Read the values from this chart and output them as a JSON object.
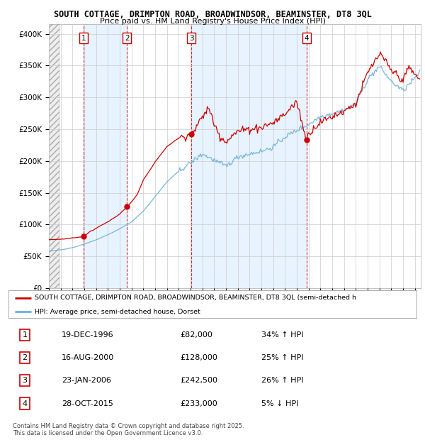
{
  "title": "SOUTH COTTAGE, DRIMPTON ROAD, BROADWINDSOR, BEAMINSTER, DT8 3QL",
  "subtitle": "Price paid vs. HM Land Registry's House Price Index (HPI)",
  "ylabel_ticks": [
    "£0",
    "£50K",
    "£100K",
    "£150K",
    "£200K",
    "£250K",
    "£300K",
    "£350K",
    "£400K"
  ],
  "ytick_values": [
    0,
    50000,
    100000,
    150000,
    200000,
    250000,
    300000,
    350000,
    400000
  ],
  "ylim": [
    0,
    415000
  ],
  "xlim_start": 1994.0,
  "xlim_end": 2025.5,
  "hpi_color": "#6baed6",
  "price_color": "#cc0000",
  "sale_dates": [
    1996.96,
    2000.62,
    2006.06,
    2015.83
  ],
  "sale_prices": [
    82000,
    128000,
    242500,
    233000
  ],
  "sale_labels": [
    "1",
    "2",
    "3",
    "4"
  ],
  "legend_property": "SOUTH COTTAGE, DRIMPTON ROAD, BROADWINDSOR, BEAMINSTER, DT8 3QL (semi-detached h",
  "legend_hpi": "HPI: Average price, semi-detached house, Dorset",
  "table_rows": [
    {
      "num": "1",
      "date": "19-DEC-1996",
      "price": "£82,000",
      "change": "34% ↑ HPI"
    },
    {
      "num": "2",
      "date": "16-AUG-2000",
      "price": "£128,000",
      "change": "25% ↑ HPI"
    },
    {
      "num": "3",
      "date": "23-JAN-2006",
      "price": "£242,500",
      "change": "26% ↑ HPI"
    },
    {
      "num": "4",
      "date": "28-OCT-2015",
      "price": "£233,000",
      "change": "5% ↓ HPI"
    }
  ],
  "footnote1": "Contains HM Land Registry data © Crown copyright and database right 2025.",
  "footnote2": "This data is licensed under the Open Government Licence v3.0.",
  "background_color": "#ffffff",
  "grid_color": "#cccccc",
  "shade_color": "#ddeeff"
}
